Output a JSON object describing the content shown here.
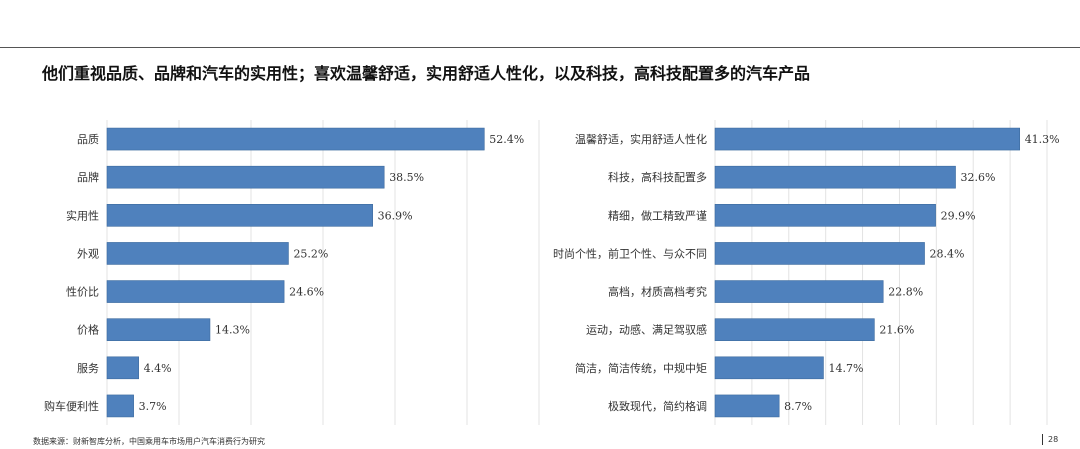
{
  "title": "他们重视品质、品牌和汽车的实用性；喜欢温馨舒适，实用舒适人性化，以及科技，高科技配置多的汽车产品",
  "source": "数据来源：财新智库分析，中国乘用车市场用户汽车消费行为研究",
  "page_number": "28",
  "colors": {
    "bar": "#4f81bd",
    "bar_edge": "#3c6a9e",
    "grid": "#e3e3e3"
  },
  "chart_data": [
    {
      "type": "bar",
      "orientation": "horizontal",
      "categories": [
        "品质",
        "品牌",
        "实用性",
        "外观",
        "性价比",
        "价格",
        "服务",
        "购车便利性"
      ],
      "values": [
        52.4,
        38.5,
        36.9,
        25.2,
        24.6,
        14.3,
        4.4,
        3.7
      ],
      "value_labels": [
        "52.4%",
        "38.5%",
        "36.9%",
        "25.2%",
        "24.6%",
        "14.3%",
        "4.4%",
        "3.7%"
      ],
      "xlim": [
        0,
        60
      ],
      "grid": true,
      "legend": false
    },
    {
      "type": "bar",
      "orientation": "horizontal",
      "categories": [
        "温馨舒适，实用舒适人性化",
        "科技，高科技配置多",
        "精细，做工精致严谨",
        "时尚个性，前卫个性、与众不同",
        "高档，材质高档考究",
        "运动，动感、满足驾驭感",
        "简洁，简洁传统，中规中矩",
        "极致现代，简约格调"
      ],
      "values": [
        41.3,
        32.6,
        29.9,
        28.4,
        22.8,
        21.6,
        14.7,
        8.7
      ],
      "value_labels": [
        "41.3%",
        "32.6%",
        "29.9%",
        "28.4%",
        "22.8%",
        "21.6%",
        "14.7%",
        "8.7%"
      ],
      "xlim": [
        0,
        45
      ],
      "grid": true,
      "legend": false
    }
  ]
}
